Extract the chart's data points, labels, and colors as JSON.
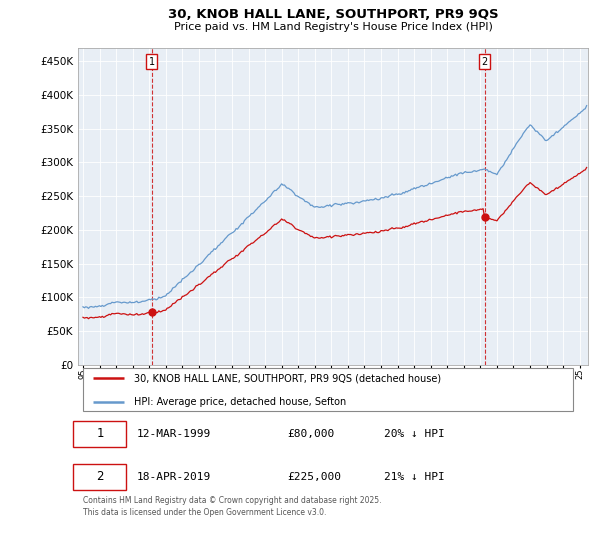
{
  "title1": "30, KNOB HALL LANE, SOUTHPORT, PR9 9QS",
  "title2": "Price paid vs. HM Land Registry's House Price Index (HPI)",
  "yticks": [
    0,
    50000,
    100000,
    150000,
    200000,
    250000,
    300000,
    350000,
    400000,
    450000
  ],
  "ylim": [
    0,
    470000
  ],
  "hpi_color": "#6699cc",
  "price_color": "#cc1111",
  "bg_chart": "#e8eef5",
  "grid_color": "#ffffff",
  "legend_property": "30, KNOB HALL LANE, SOUTHPORT, PR9 9QS (detached house)",
  "legend_hpi": "HPI: Average price, detached house, Sefton",
  "note1_date": "12-MAR-1999",
  "note1_price": "£80,000",
  "note1_hpi": "20% ↓ HPI",
  "note2_date": "18-APR-2019",
  "note2_price": "£225,000",
  "note2_hpi": "21% ↓ HPI",
  "footer": "Contains HM Land Registry data © Crown copyright and database right 2025.\nThis data is licensed under the Open Government Licence v3.0.",
  "bg_color": "#ffffff"
}
